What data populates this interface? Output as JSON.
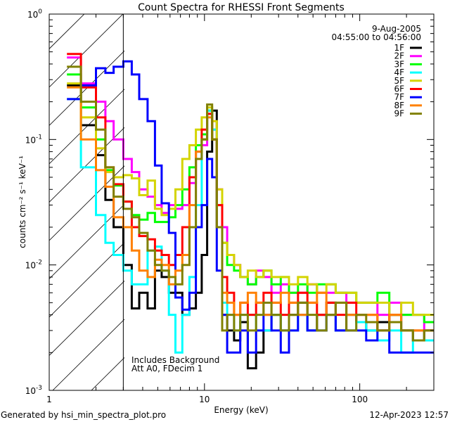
{
  "chart_data": {
    "type": "line",
    "title": "Count Spectra for RHESSI Front Segments",
    "xlabel": "Energy (keV)",
    "ylabel": "counts cm⁻² s⁻¹ keV⁻¹",
    "xscale": "log",
    "yscale": "log",
    "xlim": [
      1,
      300
    ],
    "ylim": [
      0.001,
      1
    ],
    "x_ticks": [
      {
        "value": 1,
        "label": "1"
      },
      {
        "value": 10,
        "label": "10"
      },
      {
        "value": 100,
        "label": "100"
      }
    ],
    "y_ticks": [
      {
        "value": 1,
        "base": "10",
        "exp": "0"
      },
      {
        "value": 0.1,
        "base": "10",
        "exp": "-1"
      },
      {
        "value": 0.01,
        "base": "10",
        "exp": "-2"
      },
      {
        "value": 0.001,
        "base": "10",
        "exp": "-3"
      }
    ],
    "hatched_region_keV": [
      1,
      3
    ],
    "date": "9-Aug-2005",
    "time_range": "04:55:00 to 04:56:00",
    "annotations": [
      "Includes Background",
      "Att A0, FDecim 1"
    ],
    "legend_position": "top-right",
    "energy_edges": [
      1.3,
      1.6,
      2.0,
      2.3,
      2.6,
      3.0,
      3.4,
      3.8,
      4.3,
      4.8,
      5.3,
      5.9,
      6.5,
      7.2,
      8.0,
      8.8,
      9.6,
      10.4,
      11.2,
      12.0,
      13,
      14,
      15.5,
      17,
      19,
      21.5,
      24,
      27,
      31,
      35,
      40,
      46,
      53,
      61,
      70,
      82,
      95,
      110,
      130,
      155,
      185,
      220,
      260,
      300
    ],
    "series": [
      {
        "name": "1F",
        "color": "#000000",
        "values": [
          0.27,
          0.13,
          0.075,
          0.033,
          0.02,
          0.01,
          0.0045,
          0.006,
          0.0045,
          0.009,
          0.008,
          0.006,
          0.006,
          0.004,
          0.0045,
          0.006,
          0.012,
          0.08,
          0.17,
          0.02,
          0.004,
          0.003,
          0.0025,
          0.0035,
          0.0015,
          0.002,
          0.003,
          0.004,
          0.003,
          0.004,
          0.005,
          0.003,
          0.004,
          0.005,
          0.003,
          0.004,
          0.0035,
          0.003,
          0.0035,
          0.004,
          0.003,
          0.0025,
          0.003
        ]
      },
      {
        "name": "2F",
        "color": "#ff00ff",
        "values": [
          0.45,
          0.28,
          0.2,
          0.14,
          0.1,
          0.07,
          0.055,
          0.04,
          0.035,
          0.03,
          0.026,
          0.03,
          0.028,
          0.03,
          0.045,
          0.07,
          0.09,
          0.16,
          0.12,
          0.04,
          0.02,
          0.012,
          0.01,
          0.008,
          0.007,
          0.009,
          0.008,
          0.006,
          0.007,
          0.006,
          0.006,
          0.007,
          0.006,
          0.006,
          0.006,
          0.005,
          0.005,
          0.005,
          0.004,
          0.005,
          0.004,
          0.004,
          0.003
        ]
      },
      {
        "name": "3F",
        "color": "#00ff00",
        "values": [
          0.33,
          0.18,
          0.1,
          0.057,
          0.043,
          0.032,
          0.025,
          0.023,
          0.026,
          0.022,
          0.022,
          0.024,
          0.03,
          0.04,
          0.06,
          0.09,
          0.11,
          0.17,
          0.1,
          0.03,
          0.015,
          0.01,
          0.009,
          0.008,
          0.007,
          0.008,
          0.009,
          0.007,
          0.008,
          0.006,
          0.007,
          0.006,
          0.007,
          0.007,
          0.006,
          0.006,
          0.005,
          0.005,
          0.006,
          0.004,
          0.004,
          0.004,
          0.0035
        ]
      },
      {
        "name": "4F",
        "color": "#00ffff",
        "values": [
          0.21,
          0.06,
          0.025,
          0.015,
          0.012,
          0.009,
          0.007,
          0.007,
          0.013,
          0.014,
          0.009,
          0.004,
          0.002,
          0.004,
          0.008,
          0.03,
          0.1,
          0.17,
          0.12,
          0.02,
          0.005,
          0.004,
          0.003,
          0.004,
          0.004,
          0.003,
          0.003,
          0.004,
          0.003,
          0.003,
          0.004,
          0.003,
          0.003,
          0.004,
          0.003,
          0.003,
          0.0035,
          0.003,
          0.0025,
          0.003,
          0.002,
          0.0025,
          0.0025
        ]
      },
      {
        "name": "5F",
        "color": "#d4d400",
        "values": [
          0.28,
          0.15,
          0.085,
          0.055,
          0.05,
          0.052,
          0.049,
          0.036,
          0.047,
          0.028,
          0.025,
          0.028,
          0.04,
          0.07,
          0.09,
          0.12,
          0.15,
          0.18,
          0.14,
          0.04,
          0.015,
          0.012,
          0.01,
          0.008,
          0.009,
          0.008,
          0.009,
          0.008,
          0.008,
          0.007,
          0.008,
          0.007,
          0.006,
          0.007,
          0.006,
          0.006,
          0.005,
          0.005,
          0.005,
          0.004,
          0.005,
          0.004,
          0.004
        ]
      },
      {
        "name": "6F",
        "color": "#ff0000",
        "values": [
          0.48,
          0.26,
          0.15,
          0.06,
          0.044,
          0.032,
          0.02,
          0.017,
          0.016,
          0.013,
          0.012,
          0.01,
          0.012,
          0.02,
          0.05,
          0.08,
          0.12,
          0.16,
          0.1,
          0.03,
          0.008,
          0.006,
          0.004,
          0.005,
          0.004,
          0.005,
          0.006,
          0.005,
          0.004,
          0.005,
          0.006,
          0.005,
          0.004,
          0.005,
          0.004,
          0.005,
          0.004,
          0.004,
          0.003,
          0.004,
          0.003,
          0.003,
          0.003
        ]
      },
      {
        "name": "7F",
        "color": "#0000ff",
        "values": [
          0.21,
          0.27,
          0.37,
          0.34,
          0.38,
          0.42,
          0.33,
          0.21,
          0.14,
          0.062,
          0.031,
          0.018,
          0.0055,
          0.0044,
          0.006,
          0.02,
          0.03,
          0.07,
          0.05,
          0.009,
          0.004,
          0.002,
          0.002,
          0.003,
          0.002,
          0.003,
          0.004,
          0.003,
          0.002,
          0.003,
          0.004,
          0.003,
          0.003,
          0.004,
          0.003,
          0.003,
          0.003,
          0.0025,
          0.003,
          0.002,
          0.002,
          0.002,
          0.002
        ]
      },
      {
        "name": "8F",
        "color": "#ff8000",
        "values": [
          0.26,
          0.1,
          0.057,
          0.042,
          0.024,
          0.02,
          0.013,
          0.009,
          0.008,
          0.011,
          0.01,
          0.007,
          0.009,
          0.012,
          0.03,
          0.08,
          0.1,
          0.15,
          0.1,
          0.02,
          0.006,
          0.005,
          0.004,
          0.005,
          0.006,
          0.005,
          0.004,
          0.005,
          0.006,
          0.005,
          0.004,
          0.005,
          0.006,
          0.004,
          0.005,
          0.004,
          0.004,
          0.004,
          0.003,
          0.004,
          0.003,
          0.003,
          0.003
        ]
      },
      {
        "name": "9F",
        "color": "#808000",
        "values": [
          0.38,
          0.2,
          0.12,
          0.06,
          0.035,
          0.028,
          0.024,
          0.018,
          0.013,
          0.01,
          0.009,
          0.008,
          0.007,
          0.01,
          0.02,
          0.07,
          0.1,
          0.19,
          0.1,
          0.02,
          0.003,
          0.004,
          0.003,
          0.004,
          0.003,
          0.004,
          0.005,
          0.004,
          0.003,
          0.004,
          0.005,
          0.004,
          0.003,
          0.004,
          0.005,
          0.003,
          0.004,
          0.0035,
          0.003,
          0.0035,
          0.003,
          0.0025,
          0.003
        ]
      }
    ]
  },
  "footer": {
    "generated_by": "Generated by hsi_min_spectra_plot.pro",
    "timestamp": "12-Apr-2023 12:57"
  }
}
